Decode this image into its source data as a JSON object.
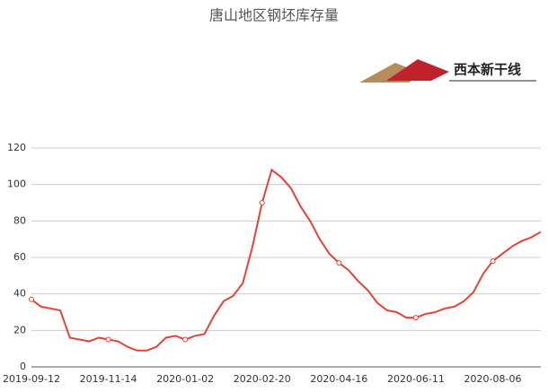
{
  "chart_data": {
    "type": "line",
    "title": "唐山地区钢坯库存量",
    "logo_text": "西本新干线",
    "categories": [
      "2019-09-12",
      null,
      null,
      null,
      null,
      null,
      null,
      null,
      "2019-11-14",
      null,
      null,
      null,
      null,
      null,
      null,
      null,
      "2020-01-02",
      null,
      null,
      null,
      null,
      null,
      null,
      null,
      "2020-02-20",
      null,
      null,
      null,
      null,
      null,
      null,
      null,
      "2020-04-16",
      null,
      null,
      null,
      null,
      null,
      null,
      null,
      "2020-06-11",
      null,
      null,
      null,
      null,
      null,
      null,
      null,
      "2020-08-06",
      null,
      null,
      null,
      null,
      null
    ],
    "series": [
      {
        "name": "唐山地区钢坯库存量",
        "color": "#e8413a",
        "values": [
          37,
          33,
          32,
          31,
          16,
          15,
          14,
          16,
          15,
          14,
          11,
          9,
          9,
          11,
          16,
          17,
          15,
          17,
          18,
          28,
          36,
          39,
          46,
          66,
          90,
          108,
          104,
          98,
          88,
          80,
          70,
          62,
          57,
          53,
          47,
          42,
          35,
          31,
          30,
          27,
          27,
          29,
          30,
          32,
          33,
          36,
          41,
          51,
          58,
          62,
          66,
          69,
          71,
          74
        ]
      }
    ],
    "ylim": [
      0,
      120
    ],
    "yticks": [
      0,
      20,
      40,
      60,
      80,
      100,
      120
    ],
    "grid": true
  }
}
